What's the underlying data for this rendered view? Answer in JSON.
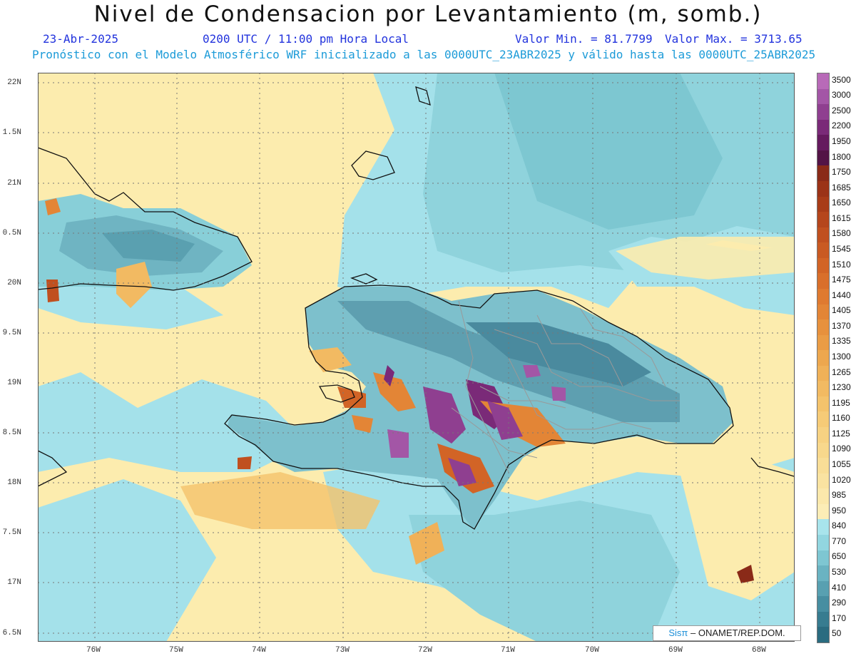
{
  "header": {
    "title": "Nivel de Condensacion por Levantamiento (m, somb.)",
    "date": "23-Abr-2025",
    "time": "0200 UTC / 11:00 pm Hora Local",
    "min_label": "Valor Min. = 81.7799",
    "max_label": "Valor Max. = 3713.65",
    "forecast": "Pronóstico con el Modelo Atmosférico WRF inicializado a las 0000UTC_23ABR2025 y válido hasta las  0000UTC_25ABR2025"
  },
  "axes": {
    "lat_labels": [
      "22N",
      "1.5N",
      "21N",
      "0.5N",
      "20N",
      "9.5N",
      "19N",
      "8.5N",
      "18N",
      "7.5N",
      "17N",
      "6.5N"
    ],
    "lon_labels": [
      "76W",
      "75W",
      "74W",
      "73W",
      "72W",
      "71W",
      "70W",
      "69W",
      "68W"
    ]
  },
  "colorbar": {
    "labels": [
      "3500",
      "3000",
      "2500",
      "2200",
      "1950",
      "1800",
      "1750",
      "1685",
      "1650",
      "1615",
      "1580",
      "1545",
      "1510",
      "1475",
      "1440",
      "1405",
      "1370",
      "1335",
      "1300",
      "1265",
      "1230",
      "1195",
      "1160",
      "1125",
      "1090",
      "1055",
      "1020",
      "985",
      "950",
      "840",
      "770",
      "650",
      "530",
      "410",
      "290",
      "170",
      "50"
    ],
    "colors": [
      "#b86ab8",
      "#a356a6",
      "#8f3f90",
      "#7a2a78",
      "#651a5e",
      "#531446",
      "#8a2a18",
      "#9b3317",
      "#a83c18",
      "#b5461c",
      "#c0501f",
      "#c95a22",
      "#d26426",
      "#d96f2b",
      "#df7a30",
      "#e38536",
      "#e7913d",
      "#ea9c45",
      "#eda74e",
      "#f0b158",
      "#f2ba62",
      "#f4c36c",
      "#f6cb77",
      "#f7d282",
      "#f8d88c",
      "#f9de97",
      "#faE3a1",
      "#fbe8ab",
      "#fcedb6",
      "#a8e4ec",
      "#92d6e0",
      "#7ec6d2",
      "#6ab3c2",
      "#58a0b1",
      "#478ea1",
      "#377c90",
      "#2a6c80"
    ]
  },
  "credit": {
    "brand": "Sisπ",
    "text": "– ONAMET/REP.DOM."
  }
}
